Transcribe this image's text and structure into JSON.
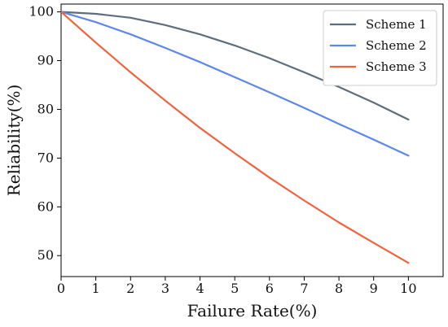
{
  "chart_data": {
    "type": "line",
    "title": "",
    "xlabel": "Failure Rate(%)",
    "ylabel": "Reliability(%)",
    "xlim": [
      0,
      11
    ],
    "ylim": [
      45.7,
      101.6
    ],
    "xticks": [
      0,
      1,
      2,
      3,
      4,
      5,
      6,
      7,
      8,
      9,
      10
    ],
    "yticks": [
      50,
      60,
      70,
      80,
      90,
      100
    ],
    "grid": false,
    "legend_position": "top-right",
    "x": [
      0,
      1,
      2,
      3,
      4,
      5,
      6,
      7,
      8,
      9,
      10
    ],
    "series": [
      {
        "name": "Scheme 1",
        "color": "#5d6d7e",
        "values": [
          100.0,
          99.6,
          98.8,
          97.3,
          95.4,
          93.1,
          90.5,
          87.6,
          84.6,
          81.4,
          77.9
        ]
      },
      {
        "name": "Scheme 2",
        "color": "#5c88ea",
        "values": [
          100.0,
          97.9,
          95.4,
          92.6,
          89.7,
          86.6,
          83.5,
          80.3,
          77.0,
          73.8,
          70.5
        ]
      },
      {
        "name": "Scheme 3",
        "color": "#f0643c",
        "values": [
          100.0,
          93.7,
          87.6,
          81.8,
          76.2,
          71.0,
          66.0,
          61.3,
          56.8,
          52.6,
          48.5
        ]
      }
    ]
  }
}
